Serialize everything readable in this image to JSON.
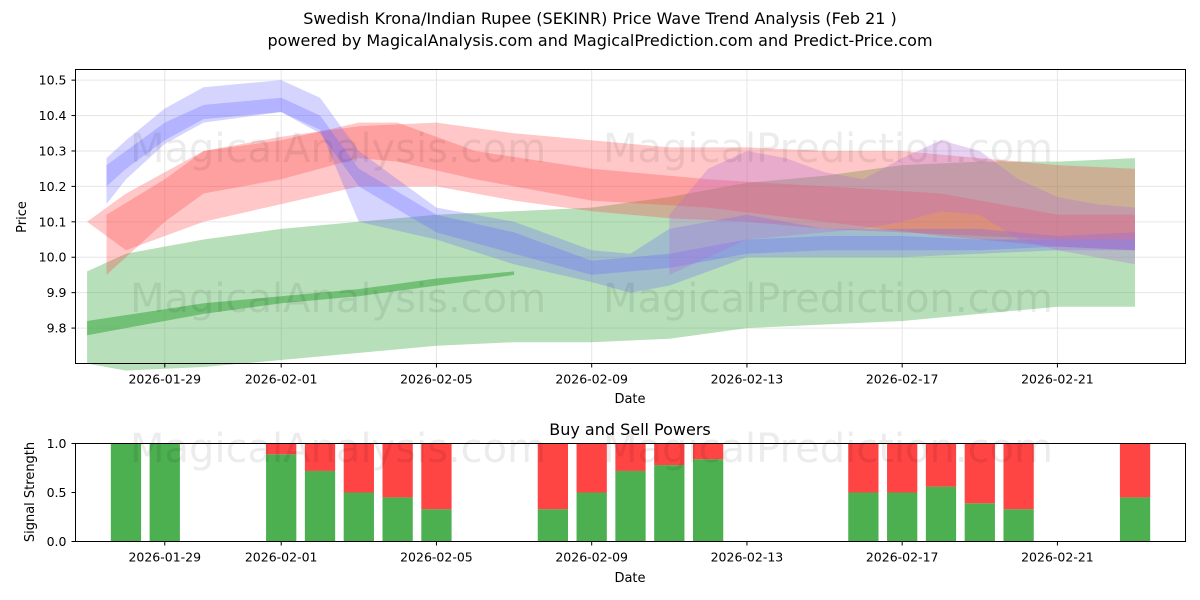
{
  "header": {
    "title": "Swedish Krona/Indian Rupee (SEKINR) Price Wave Trend Analysis (Feb 21 )",
    "subtitle": "powered by MagicalAnalysis.com and MagicalPrediction.com and Predict-Price.com"
  },
  "watermarks": [
    "MagicalAnalysis.com",
    "MagicalPrediction.com"
  ],
  "colors": {
    "blue": "#6666ff",
    "red": "#ff4444",
    "green": "#4caf50",
    "purple": "#b36bd6"
  },
  "chart_data": [
    {
      "type": "area",
      "title": "",
      "xlabel": "Date",
      "ylabel": "Price",
      "xlim": [
        -2.3,
        26.3
      ],
      "ylim": [
        9.7,
        10.53
      ],
      "x_ticks": [
        {
          "v": 0,
          "label": "2026-01-29"
        },
        {
          "v": 3,
          "label": "2026-02-01"
        },
        {
          "v": 7,
          "label": "2026-02-05"
        },
        {
          "v": 11,
          "label": "2026-02-09"
        },
        {
          "v": 15,
          "label": "2026-02-13"
        },
        {
          "v": 19,
          "label": "2026-02-17"
        },
        {
          "v": 23,
          "label": "2026-02-21"
        }
      ],
      "y_ticks": [
        9.8,
        9.9,
        10.0,
        10.1,
        10.2,
        10.3,
        10.4,
        10.5
      ],
      "grid": true,
      "series": [
        {
          "name": "green-band-wide",
          "color": "green",
          "opacity": 0.4,
          "x": [
            -2,
            -1,
            1,
            3,
            5,
            7,
            9,
            11,
            13,
            15,
            17,
            19,
            21,
            23,
            25
          ],
          "upper": [
            9.96,
            10.01,
            10.05,
            10.08,
            10.1,
            10.12,
            10.13,
            10.14,
            10.17,
            10.21,
            10.23,
            10.26,
            10.27,
            10.27,
            10.28
          ],
          "lower": [
            9.7,
            9.68,
            9.69,
            9.71,
            9.73,
            9.75,
            9.76,
            9.76,
            9.77,
            9.8,
            9.81,
            9.82,
            9.84,
            9.86,
            9.86
          ]
        },
        {
          "name": "green-line",
          "color": "green",
          "opacity": 0.65,
          "x": [
            -2,
            1,
            3,
            5,
            7,
            9
          ],
          "upper": [
            9.82,
            9.87,
            9.89,
            9.91,
            9.94,
            9.96
          ],
          "lower": [
            9.78,
            9.84,
            9.87,
            9.89,
            9.92,
            9.95
          ]
        },
        {
          "name": "red-band-wide",
          "color": "red",
          "opacity": 0.3,
          "x": [
            -2,
            -1,
            1,
            3,
            5,
            7,
            9,
            11,
            13,
            15,
            17,
            19,
            21,
            23,
            25
          ],
          "upper": [
            10.1,
            10.18,
            10.3,
            10.34,
            10.37,
            10.38,
            10.35,
            10.33,
            10.31,
            10.31,
            10.3,
            10.3,
            10.28,
            10.26,
            10.25
          ],
          "lower": [
            10.1,
            10.02,
            10.1,
            10.15,
            10.2,
            10.2,
            10.16,
            10.13,
            10.11,
            10.1,
            10.08,
            10.07,
            10.06,
            10.05,
            10.05
          ]
        },
        {
          "name": "red-band-mid",
          "color": "red",
          "opacity": 0.3,
          "x": [
            -1.5,
            0,
            1,
            3,
            5,
            6,
            8,
            11,
            14,
            17,
            20,
            23,
            25
          ],
          "upper": [
            10.12,
            10.22,
            10.3,
            10.33,
            10.38,
            10.38,
            10.3,
            10.25,
            10.22,
            10.2,
            10.18,
            10.12,
            10.12
          ],
          "lower": [
            9.95,
            10.1,
            10.18,
            10.22,
            10.28,
            10.27,
            10.22,
            10.16,
            10.14,
            10.1,
            10.06,
            10.03,
            10.02
          ]
        },
        {
          "name": "blue-band",
          "color": "blue",
          "opacity": 0.28,
          "x": [
            -1.5,
            -1,
            0,
            1,
            3,
            4,
            5,
            7,
            9,
            11,
            12,
            13,
            15,
            17,
            19,
            21,
            23,
            25
          ],
          "upper": [
            10.28,
            10.33,
            10.42,
            10.48,
            10.5,
            10.45,
            10.3,
            10.14,
            10.1,
            10.02,
            10.01,
            10.08,
            10.12,
            10.08,
            10.08,
            10.08,
            10.06,
            10.07
          ],
          "lower": [
            10.15,
            10.22,
            10.32,
            10.38,
            10.41,
            10.36,
            10.1,
            10.05,
            9.98,
            9.93,
            9.9,
            9.92,
            10.0,
            10.0,
            10.0,
            10.01,
            10.02,
            10.02
          ]
        },
        {
          "name": "blue-band-dark",
          "color": "blue",
          "opacity": 0.3,
          "x": [
            -1.5,
            -1,
            0,
            1,
            3,
            4,
            5,
            7,
            9,
            11,
            13,
            15,
            17,
            19,
            21,
            23,
            25
          ],
          "upper": [
            10.26,
            10.3,
            10.38,
            10.43,
            10.45,
            10.4,
            10.25,
            10.12,
            10.07,
            9.99,
            10.01,
            10.05,
            10.06,
            10.06,
            10.05,
            10.05,
            10.05
          ],
          "lower": [
            10.2,
            10.25,
            10.33,
            10.39,
            10.41,
            10.35,
            10.2,
            10.07,
            10.01,
            9.95,
            9.97,
            10.01,
            10.02,
            10.02,
            10.02,
            10.03,
            10.02
          ]
        },
        {
          "name": "purple-band",
          "color": "purple",
          "opacity": 0.3,
          "x": [
            13,
            14,
            15,
            16,
            17,
            18,
            19,
            20,
            21,
            22,
            23,
            24,
            25
          ],
          "upper": [
            10.12,
            10.25,
            10.3,
            10.28,
            10.24,
            10.22,
            10.28,
            10.33,
            10.3,
            10.22,
            10.17,
            10.15,
            10.14
          ],
          "lower": [
            9.95,
            10.0,
            10.05,
            10.06,
            10.07,
            10.08,
            10.1,
            10.13,
            10.12,
            10.05,
            10.02,
            10.0,
            9.98
          ]
        }
      ]
    },
    {
      "type": "bar",
      "title": "Buy and Sell Powers",
      "xlabel": "Date",
      "ylabel": "Signal Strength",
      "xlim": [
        -2.3,
        26.3
      ],
      "ylim": [
        0,
        1.0
      ],
      "x_ticks": [
        {
          "v": 0,
          "label": "2026-01-29"
        },
        {
          "v": 3,
          "label": "2026-02-01"
        },
        {
          "v": 7,
          "label": "2026-02-05"
        },
        {
          "v": 11,
          "label": "2026-02-09"
        },
        {
          "v": 15,
          "label": "2026-02-13"
        },
        {
          "v": 19,
          "label": "2026-02-17"
        },
        {
          "v": 23,
          "label": "2026-02-21"
        }
      ],
      "y_ticks": [
        {
          "v": 0,
          "label": "0.0"
        },
        {
          "v": 0.5,
          "label": "0.5"
        },
        {
          "v": 1.0,
          "label": "1.0"
        }
      ],
      "series": [
        {
          "name": "Buy",
          "color": "green"
        },
        {
          "name": "Sell",
          "color": "red"
        }
      ],
      "days": [
        -1,
        0,
        3,
        4,
        5,
        6,
        7,
        10,
        11,
        12,
        13,
        14,
        18,
        19,
        20,
        21,
        22,
        25
      ],
      "buy": [
        1.0,
        1.0,
        0.89,
        0.72,
        0.5,
        0.45,
        0.33,
        0.33,
        0.5,
        0.72,
        0.78,
        0.84,
        0.5,
        0.5,
        0.56,
        0.39,
        0.33,
        0.45
      ],
      "sell": [
        0.0,
        0.0,
        0.11,
        0.28,
        0.5,
        0.55,
        0.67,
        0.67,
        0.5,
        0.28,
        0.22,
        0.16,
        0.5,
        0.5,
        0.44,
        0.61,
        0.67,
        0.55
      ]
    }
  ]
}
